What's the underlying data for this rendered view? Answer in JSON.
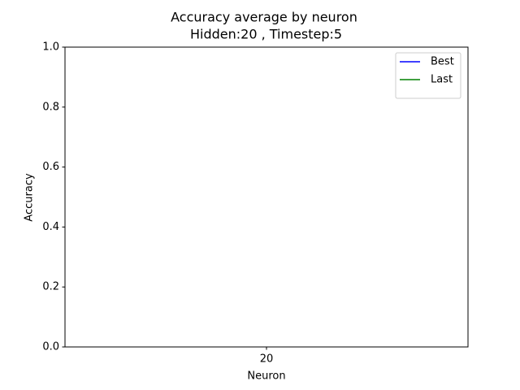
{
  "chart_data": {
    "type": "line",
    "title": "Accuracy average by neuron",
    "subtitle": " Hidden:20 , Timestep:5",
    "x_label": "Neuron",
    "y_label": "Accuracy",
    "categories": [
      "20"
    ],
    "series": [
      {
        "name": "Best",
        "color": "#0000ff",
        "values": [
          null
        ]
      },
      {
        "name": "Last",
        "color": "#008000",
        "values": [
          null
        ]
      }
    ],
    "ylim": [
      0,
      1
    ],
    "yticks": [
      {
        "value": 0,
        "label": "0.0"
      },
      {
        "value": 0.2,
        "label": "0.2"
      },
      {
        "value": 0.4,
        "label": "0.4"
      },
      {
        "value": 0.6,
        "label": "0.6"
      },
      {
        "value": 0.8,
        "label": "0.8"
      },
      {
        "value": 1,
        "label": "1.0"
      }
    ],
    "legend": "upper right",
    "grid": false
  }
}
